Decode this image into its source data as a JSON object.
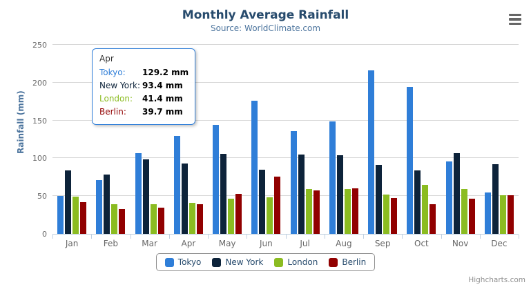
{
  "chart": {
    "title": "Monthly Average Rainfall",
    "subtitle": "Source: WorldClimate.com",
    "credits": "Highcharts.com"
  },
  "chart_data": {
    "type": "bar",
    "title": "Monthly Average Rainfall",
    "subtitle": "Source: WorldClimate.com",
    "categories": [
      "Jan",
      "Feb",
      "Mar",
      "Apr",
      "May",
      "Jun",
      "Jul",
      "Aug",
      "Sep",
      "Oct",
      "Nov",
      "Dec"
    ],
    "series": [
      {
        "name": "Tokyo",
        "color": "#2f7ed8",
        "values": [
          49.9,
          71.5,
          106.4,
          129.2,
          144.0,
          176.0,
          135.6,
          148.5,
          216.4,
          194.1,
          95.6,
          54.4
        ]
      },
      {
        "name": "New York",
        "color": "#0d233a",
        "values": [
          83.6,
          78.8,
          98.5,
          93.4,
          106.0,
          84.5,
          105.0,
          104.3,
          91.2,
          83.5,
          106.6,
          92.3
        ]
      },
      {
        "name": "London",
        "color": "#8bbc21",
        "values": [
          48.9,
          38.8,
          39.3,
          41.4,
          47.0,
          48.3,
          59.0,
          59.6,
          52.4,
          65.2,
          59.3,
          51.2
        ]
      },
      {
        "name": "Berlin",
        "color": "#910000",
        "values": [
          42.4,
          33.2,
          34.5,
          39.7,
          52.6,
          75.5,
          57.4,
          60.4,
          47.6,
          39.1,
          46.8,
          51.1
        ]
      }
    ],
    "xlabel": "",
    "ylabel": "Rainfall (mm)",
    "ylim": [
      0,
      250
    ],
    "yticks": [
      0,
      50,
      100,
      150,
      200,
      250
    ],
    "grid": true,
    "legend_position": "bottom",
    "value_suffix": "mm"
  },
  "tooltip": {
    "header": "Apr",
    "rows": [
      {
        "label": "Tokyo:",
        "value": "129.2 mm",
        "color": "#2f7ed8"
      },
      {
        "label": "New York:",
        "value": "93.4 mm",
        "color": "#0d233a"
      },
      {
        "label": "London:",
        "value": "41.4 mm",
        "color": "#8bbc21"
      },
      {
        "label": "Berlin:",
        "value": "39.7 mm",
        "color": "#910000"
      }
    ],
    "border_color": "#2f7ed8"
  }
}
